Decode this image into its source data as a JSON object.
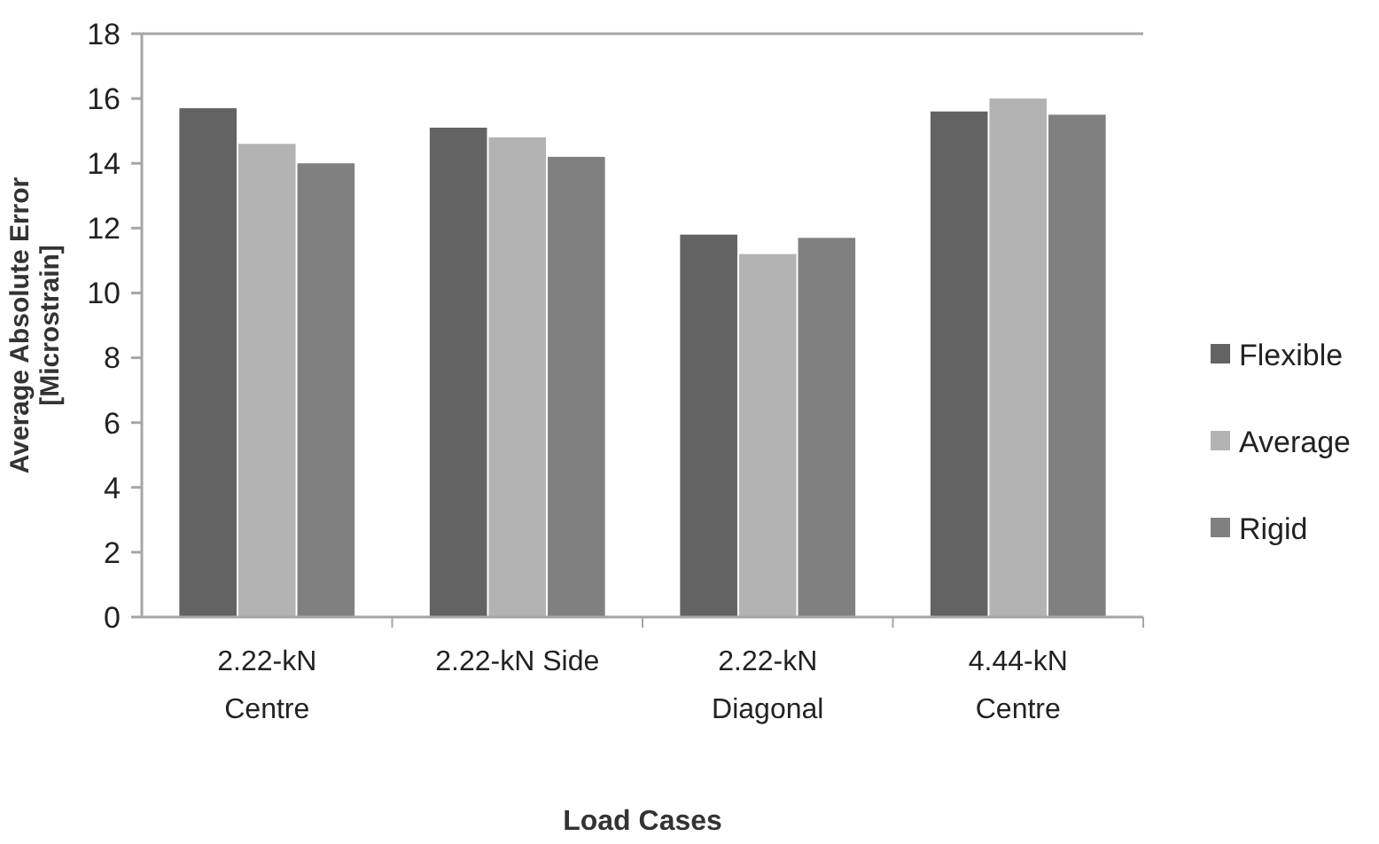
{
  "chart_data": {
    "type": "bar",
    "xlabel": "Load Cases",
    "ylabel": "Average Absolute Error [Microstrain]",
    "categories": [
      "2.22-kN Centre",
      "2.22-kN Side",
      "2.22-kN Diagonal",
      "4.44-kN Centre"
    ],
    "series": [
      {
        "name": "Flexible",
        "color": "#636363",
        "values": [
          15.7,
          15.1,
          11.8,
          15.6
        ]
      },
      {
        "name": "Average",
        "color": "#b3b3b3",
        "values": [
          14.6,
          14.8,
          11.2,
          16.0
        ]
      },
      {
        "name": "Rigid",
        "color": "#808080",
        "values": [
          14.0,
          14.2,
          11.7,
          15.5
        ]
      }
    ],
    "ylim": [
      0,
      18
    ],
    "yticks": [
      0,
      2,
      4,
      6,
      8,
      10,
      12,
      14,
      16,
      18
    ],
    "grid": false,
    "legend": "right"
  }
}
